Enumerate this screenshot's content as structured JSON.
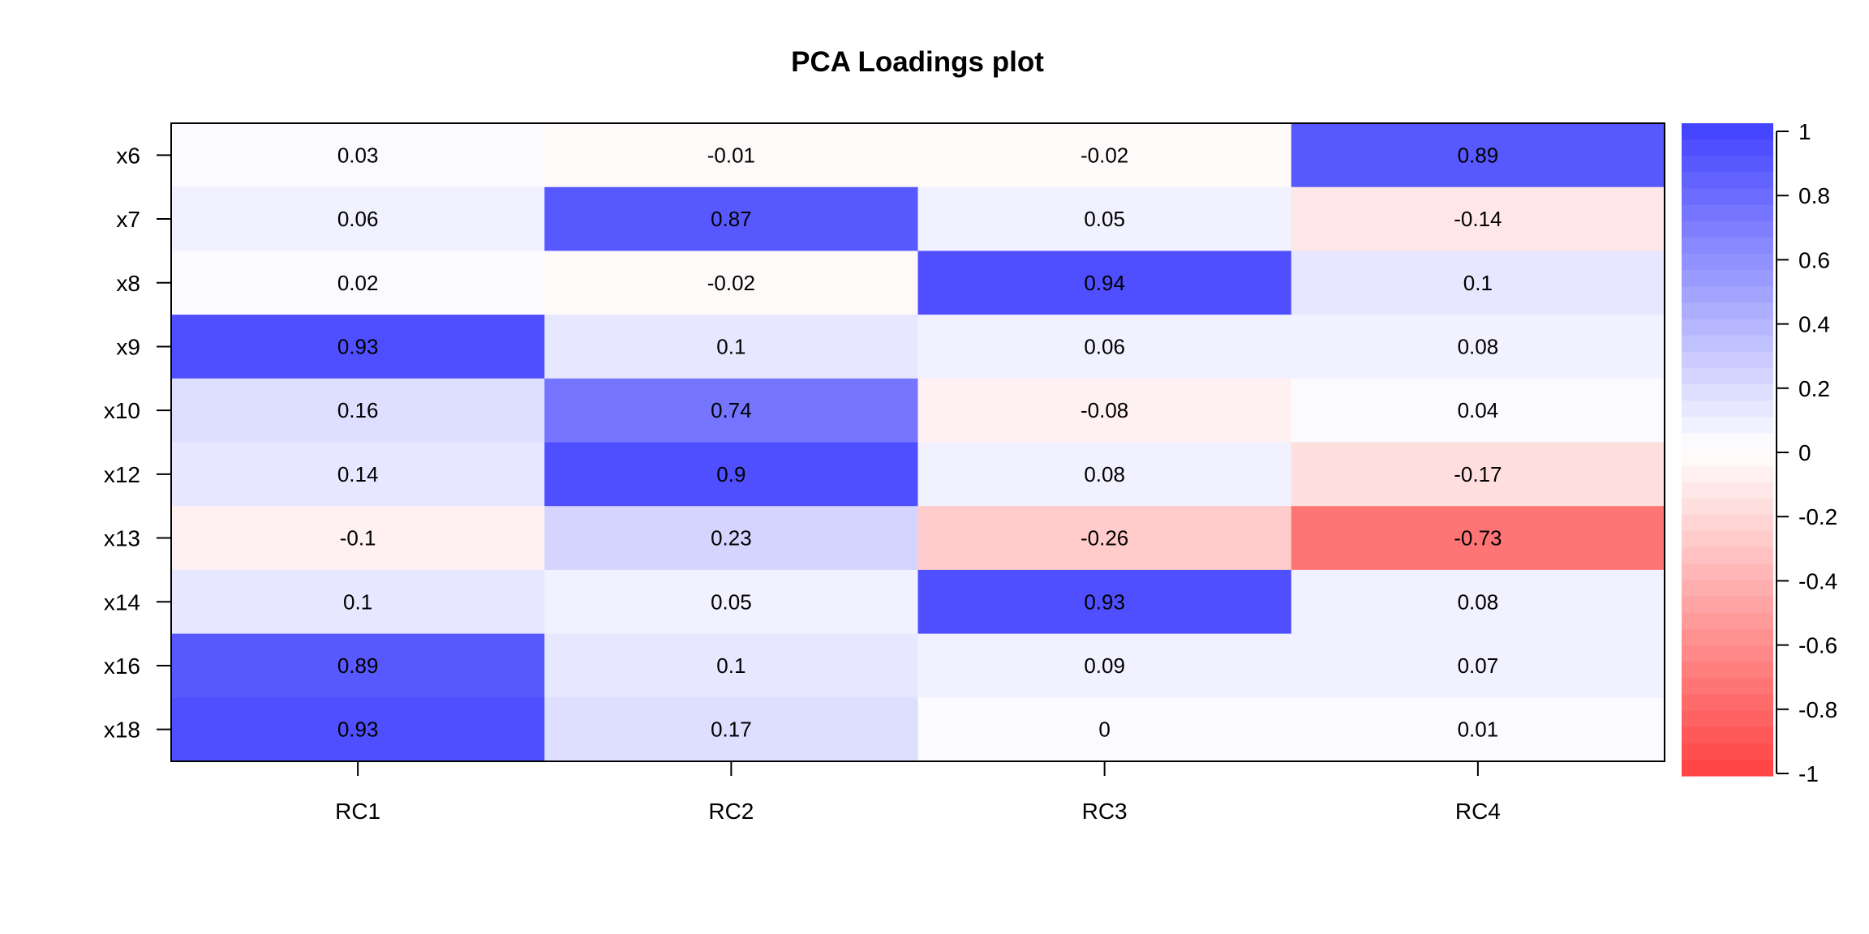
{
  "chart_data": {
    "type": "heatmap",
    "title": "PCA Loadings plot",
    "xlabel": "",
    "ylabel": "",
    "columns": [
      "RC1",
      "RC2",
      "RC3",
      "RC4"
    ],
    "rows": [
      "x6",
      "x7",
      "x8",
      "x9",
      "x10",
      "x12",
      "x13",
      "x14",
      "x16",
      "x18"
    ],
    "values": [
      [
        0.03,
        -0.01,
        -0.02,
        0.89
      ],
      [
        0.06,
        0.87,
        0.05,
        -0.14
      ],
      [
        0.02,
        -0.02,
        0.94,
        0.1
      ],
      [
        0.93,
        0.1,
        0.06,
        0.08
      ],
      [
        0.16,
        0.74,
        -0.08,
        0.04
      ],
      [
        0.14,
        0.9,
        0.08,
        -0.17
      ],
      [
        -0.1,
        0.23,
        -0.26,
        -0.73
      ],
      [
        0.1,
        0.05,
        0.93,
        0.08
      ],
      [
        0.89,
        0.1,
        0.09,
        0.07
      ],
      [
        0.93,
        0.17,
        0,
        0.01
      ]
    ],
    "value_labels": [
      [
        "0.03",
        "-0.01",
        "-0.02",
        "0.89"
      ],
      [
        "0.06",
        "0.87",
        "0.05",
        "-0.14"
      ],
      [
        "0.02",
        "-0.02",
        "0.94",
        "0.1"
      ],
      [
        "0.93",
        "0.1",
        "0.06",
        "0.08"
      ],
      [
        "0.16",
        "0.74",
        "-0.08",
        "0.04"
      ],
      [
        "0.14",
        "0.9",
        "0.08",
        "-0.17"
      ],
      [
        "-0.1",
        "0.23",
        "-0.26",
        "-0.73"
      ],
      [
        "0.1",
        "0.05",
        "0.93",
        "0.08"
      ],
      [
        "0.89",
        "0.1",
        "0.09",
        "0.07"
      ],
      [
        "0.93",
        "0.17",
        "0",
        "0.01"
      ]
    ],
    "color_scale": {
      "range": [
        -1,
        1
      ],
      "low_color": "#ff4545",
      "mid_color": "#ffffff",
      "high_color": "#4545ff"
    },
    "legend": {
      "placement": "right",
      "ticks": [
        1,
        0.8,
        0.6,
        0.4,
        0.2,
        0,
        -0.2,
        -0.4,
        -0.6,
        -0.8,
        -1
      ],
      "tick_labels": [
        "1",
        "0.8",
        "0.6",
        "0.4",
        "0.2",
        "0",
        "-0.2",
        "-0.4",
        "-0.6",
        "-0.8",
        "-1"
      ]
    },
    "grid": false
  }
}
